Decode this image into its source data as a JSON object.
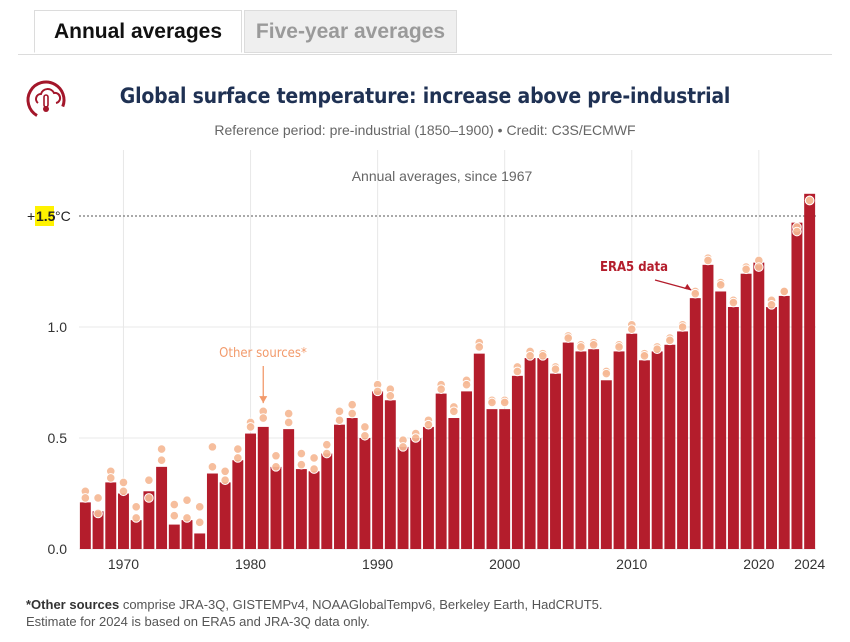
{
  "tabs": [
    {
      "label": "Annual averages",
      "active": true
    },
    {
      "label": "Five-year averages",
      "active": false
    }
  ],
  "header": {
    "title": "Global surface temperature: increase above pre-industrial",
    "subtitle": "Reference period: pre-industrial (1850–1900) • Credit: C3S/ECMWF"
  },
  "chart_data": {
    "type": "bar",
    "inner_title": "Annual averages, since 1967",
    "x": [
      1967,
      1968,
      1969,
      1970,
      1971,
      1972,
      1973,
      1974,
      1975,
      1976,
      1977,
      1978,
      1979,
      1980,
      1981,
      1982,
      1983,
      1984,
      1985,
      1986,
      1987,
      1988,
      1989,
      1990,
      1991,
      1992,
      1993,
      1994,
      1995,
      1996,
      1997,
      1998,
      1999,
      2000,
      2001,
      2002,
      2003,
      2004,
      2005,
      2006,
      2007,
      2008,
      2009,
      2010,
      2011,
      2012,
      2013,
      2014,
      2015,
      2016,
      2017,
      2018,
      2019,
      2020,
      2021,
      2022,
      2023,
      2024
    ],
    "values": [
      0.21,
      0.17,
      0.3,
      0.25,
      0.13,
      0.26,
      0.37,
      0.11,
      0.13,
      0.07,
      0.34,
      0.3,
      0.4,
      0.52,
      0.55,
      0.37,
      0.54,
      0.36,
      0.35,
      0.43,
      0.56,
      0.59,
      0.5,
      0.71,
      0.67,
      0.46,
      0.5,
      0.55,
      0.7,
      0.59,
      0.71,
      0.88,
      0.63,
      0.63,
      0.78,
      0.86,
      0.86,
      0.79,
      0.93,
      0.89,
      0.9,
      0.76,
      0.89,
      0.97,
      0.85,
      0.89,
      0.92,
      0.98,
      1.13,
      1.28,
      1.16,
      1.09,
      1.24,
      1.29,
      1.09,
      1.14,
      1.47,
      1.6
    ],
    "other_sources": [
      [
        0.26,
        0.23
      ],
      [
        0.23,
        0.16
      ],
      [
        0.35,
        0.32
      ],
      [
        0.3,
        0.26
      ],
      [
        0.19,
        0.14
      ],
      [
        0.31,
        0.23
      ],
      [
        0.45,
        0.4
      ],
      [
        0.2,
        0.15
      ],
      [
        0.22,
        0.14
      ],
      [
        0.19,
        0.12
      ],
      [
        0.46,
        0.37
      ],
      [
        0.35,
        0.31
      ],
      [
        0.45,
        0.41
      ],
      [
        0.57,
        0.55
      ],
      [
        0.62,
        0.59
      ],
      [
        0.42,
        0.37
      ],
      [
        0.61,
        0.57
      ],
      [
        0.43,
        0.38
      ],
      [
        0.41,
        0.36
      ],
      [
        0.47,
        0.43
      ],
      [
        0.62,
        0.58
      ],
      [
        0.65,
        0.61
      ],
      [
        0.55,
        0.51
      ],
      [
        0.74,
        0.71
      ],
      [
        0.72,
        0.69
      ],
      [
        0.49,
        0.46
      ],
      [
        0.52,
        0.5
      ],
      [
        0.58,
        0.56
      ],
      [
        0.74,
        0.72
      ],
      [
        0.64,
        0.62
      ],
      [
        0.76,
        0.74
      ],
      [
        0.93,
        0.91
      ],
      [
        0.67,
        0.66
      ],
      [
        0.67,
        0.66
      ],
      [
        0.82,
        0.8
      ],
      [
        0.89,
        0.87
      ],
      [
        0.88,
        0.87
      ],
      [
        0.82,
        0.81
      ],
      [
        0.96,
        0.95
      ],
      [
        0.92,
        0.91
      ],
      [
        0.93,
        0.92
      ],
      [
        0.8,
        0.79
      ],
      [
        0.92,
        0.91
      ],
      [
        1.01,
        0.99
      ],
      [
        0.88,
        0.87
      ],
      [
        0.91,
        0.9
      ],
      [
        0.95,
        0.94
      ],
      [
        1.01,
        1.0
      ],
      [
        1.16,
        1.15
      ],
      [
        1.31,
        1.3
      ],
      [
        1.2,
        1.19
      ],
      [
        1.12,
        1.11
      ],
      [
        1.27,
        1.26
      ],
      [
        1.3,
        1.27
      ],
      [
        1.12,
        1.1
      ],
      [
        1.16,
        1.16
      ],
      [
        1.45,
        1.43
      ],
      [
        1.57,
        1.57
      ]
    ],
    "y_ticks": [
      0.0,
      0.5,
      1.0
    ],
    "y_tick_labels": [
      "0.0",
      "0.5",
      "1.0"
    ],
    "x_ticks": [
      1970,
      1980,
      1990,
      2000,
      2010,
      2020,
      2024
    ],
    "x_tick_labels": [
      "1970",
      "1980",
      "1990",
      "2000",
      "2010",
      "2020",
      "2024"
    ],
    "ylim": [
      0,
      1.75
    ],
    "xlim": [
      1966.5,
      2024.5
    ],
    "threshold": {
      "value": 1.5,
      "label_prefix": "+",
      "label_value": "1.5",
      "label_suffix": "°C"
    },
    "annotations": [
      {
        "text": "ERA5 data",
        "arrow_to_year": 2015,
        "arrow_to_value": 1.14
      },
      {
        "text": "Other sources*",
        "arrow_to_year": 1981,
        "arrow_to_value": 0.63
      }
    ],
    "grid": true,
    "colors": {
      "bar": "#b41d2c",
      "other": "#f5b895",
      "threshold": "#777777",
      "highlight": "#fff200"
    }
  },
  "footnote": {
    "bold": "*Other sources",
    "line1_rest": " comprise JRA-3Q, GISTEMPv4, NOAAGlobalTempv6, Berkeley Earth, HadCRUT5.",
    "line2": "Estimate for 2024 is based on ERA5 and JRA-3Q data only."
  },
  "logo": {
    "icon": "thermometer-cloud-icon",
    "color": "#a3162a"
  }
}
